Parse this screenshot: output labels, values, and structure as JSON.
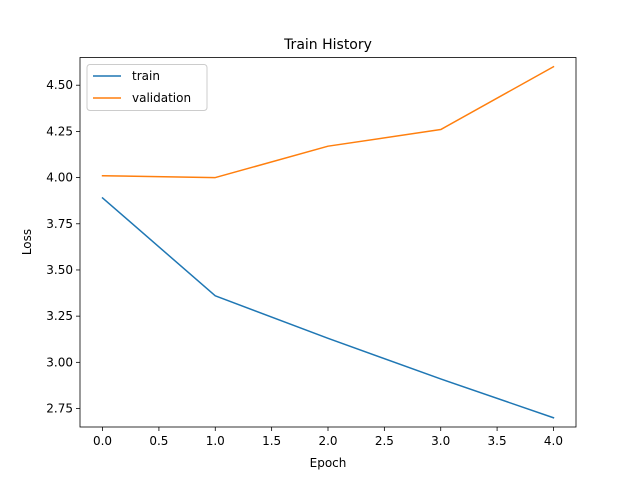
{
  "chart_data": {
    "type": "line",
    "title": "Train History",
    "xlabel": "Epoch",
    "ylabel": "Loss",
    "x": [
      0,
      1,
      2,
      3,
      4
    ],
    "xlim": [
      -0.2,
      4.2
    ],
    "ylim": [
      2.65,
      4.65
    ],
    "xticks": [
      0.0,
      0.5,
      1.0,
      1.5,
      2.0,
      2.5,
      3.0,
      3.5,
      4.0
    ],
    "xtick_labels": [
      "0.0",
      "0.5",
      "1.0",
      "1.5",
      "2.0",
      "2.5",
      "3.0",
      "3.5",
      "4.0"
    ],
    "yticks": [
      2.75,
      3.0,
      3.25,
      3.5,
      3.75,
      4.0,
      4.25,
      4.5
    ],
    "ytick_labels": [
      "2.75",
      "3.00",
      "3.25",
      "3.50",
      "3.75",
      "4.00",
      "4.25",
      "4.50"
    ],
    "grid": false,
    "legend_position": "top-left",
    "series": [
      {
        "name": "train",
        "color": "#1f77b4",
        "values": [
          3.89,
          3.36,
          3.13,
          2.91,
          2.7
        ]
      },
      {
        "name": "validation",
        "color": "#ff7f0e",
        "values": [
          4.01,
          4.0,
          4.17,
          4.26,
          4.6
        ]
      }
    ]
  }
}
